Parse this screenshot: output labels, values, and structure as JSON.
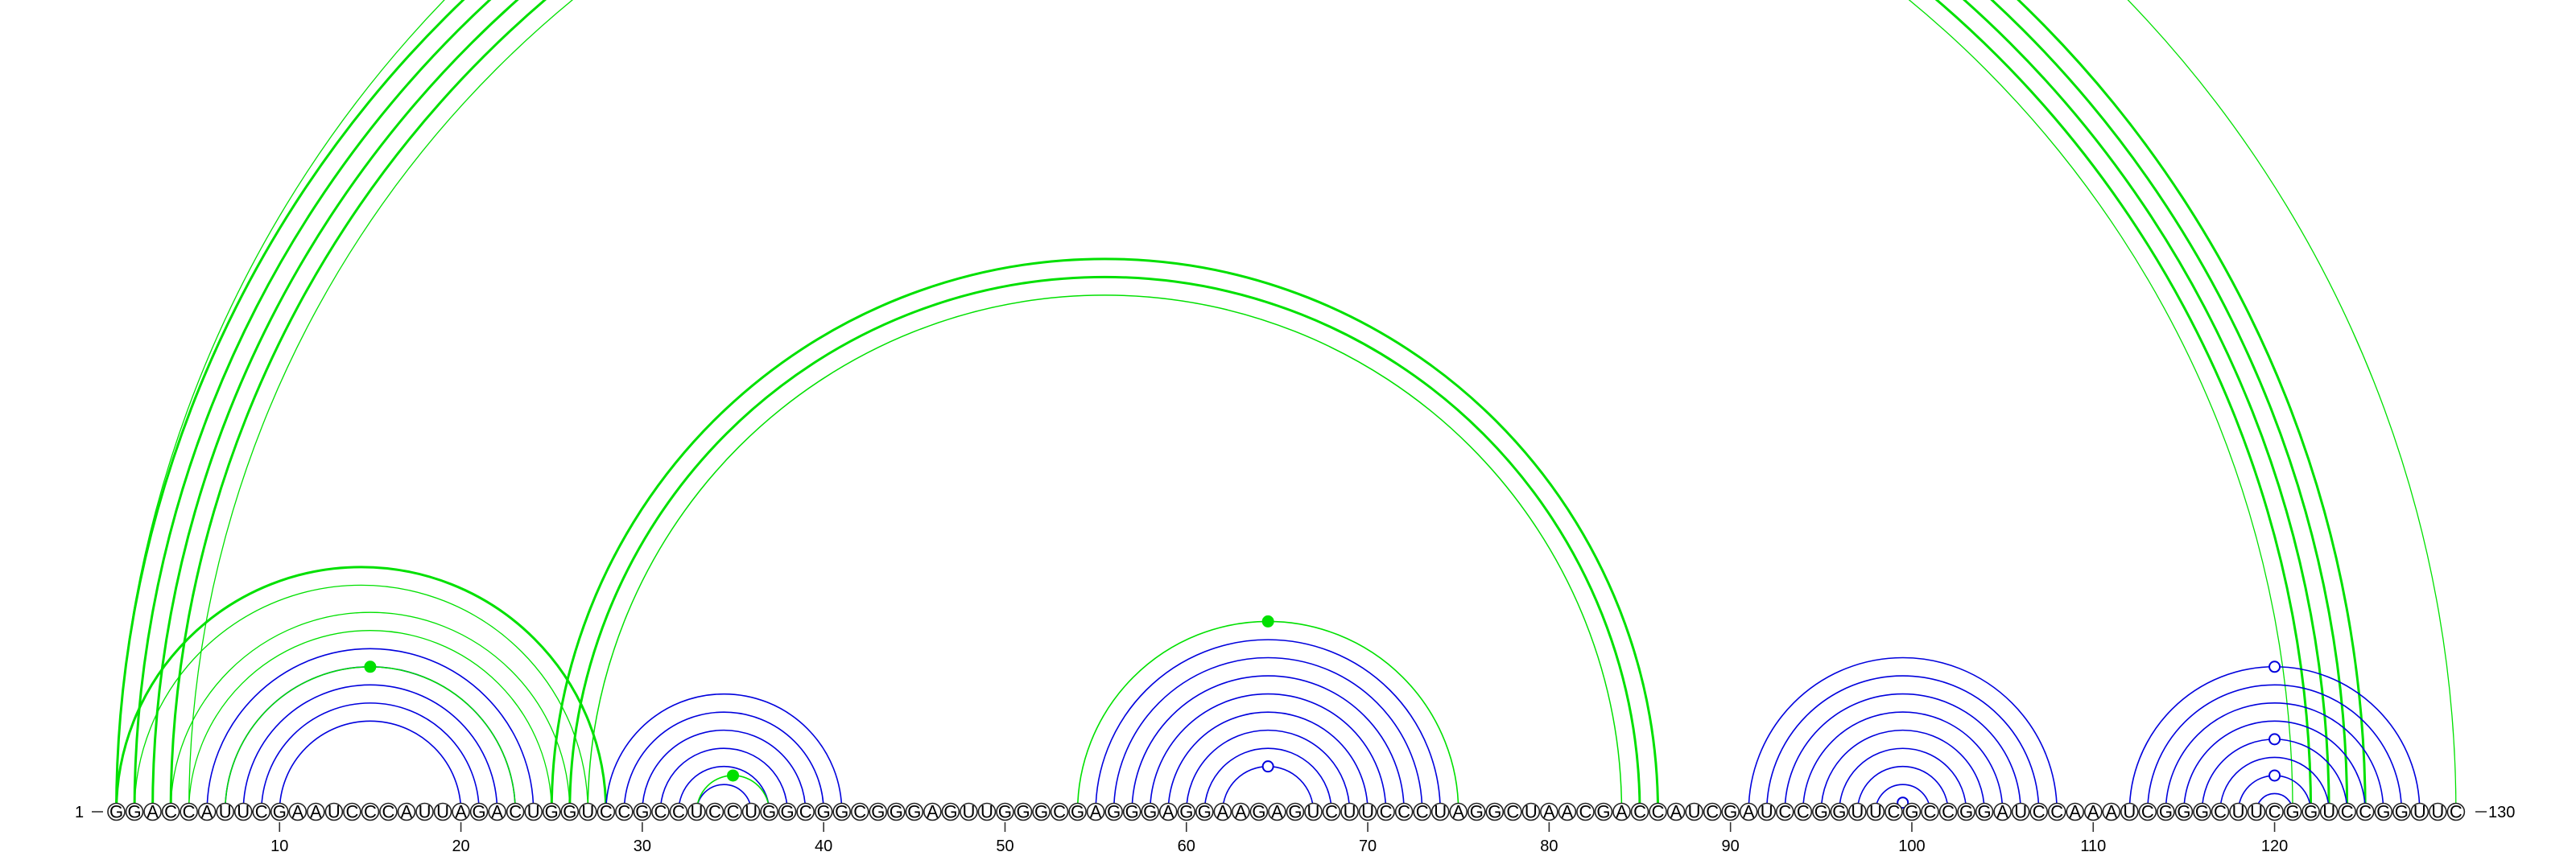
{
  "diagram": {
    "sequence": "GGACCAUUCGAAUCCCAUUAGACUGGUCCGCCUCCUGGCGGCGGGAGUUGGGCGAGGGAGGAAGAGUCUUCCCUAGGCUAACGACCAUCGAUCCGGUUCGCCGGAUCCAAAUCGGGCUUCGGUCCGGUUC",
    "start_label": "1",
    "end_label": "130",
    "tick_labels": [
      "10",
      "20",
      "30",
      "40",
      "50",
      "60",
      "70",
      "80",
      "90",
      "100",
      "110",
      "120"
    ],
    "colors": {
      "predicted_pair": "#00e000",
      "reference_pair": "#0000dd",
      "outline": "#222222"
    }
  }
}
